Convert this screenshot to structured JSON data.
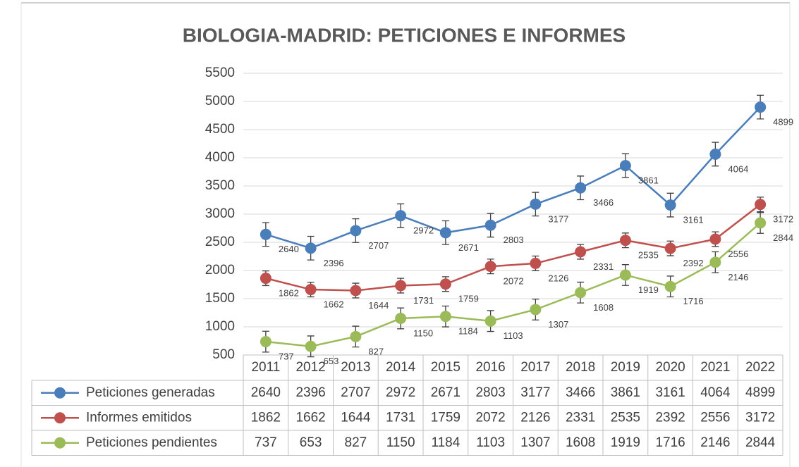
{
  "chart_data": {
    "type": "line",
    "title": "BIOLOGIA-MADRID: PETICIONES E INFORMES",
    "categories": [
      "2011",
      "2012",
      "2013",
      "2014",
      "2015",
      "2016",
      "2017",
      "2018",
      "2019",
      "2020",
      "2021",
      "2022"
    ],
    "ylim": [
      500,
      5500
    ],
    "yticks": [
      500,
      1000,
      1500,
      2000,
      2500,
      3000,
      3500,
      4000,
      4500,
      5000,
      5500
    ],
    "grid": true,
    "series": [
      {
        "name": "Peticiones generadas",
        "color": "#4a7ebb",
        "error": 210,
        "values": [
          2640,
          2396,
          2707,
          2972,
          2671,
          2803,
          3177,
          3466,
          3861,
          3161,
          4064,
          4899
        ]
      },
      {
        "name": "Informes emitidos",
        "color": "#c0504d",
        "error": 130,
        "values": [
          1862,
          1662,
          1644,
          1731,
          1759,
          2072,
          2126,
          2331,
          2535,
          2392,
          2556,
          3172
        ]
      },
      {
        "name": "Peticiones pendientes",
        "color": "#9bbb59",
        "error": 185,
        "values": [
          737,
          653,
          827,
          1150,
          1184,
          1103,
          1307,
          1608,
          1919,
          1716,
          2146,
          2844
        ]
      }
    ]
  }
}
